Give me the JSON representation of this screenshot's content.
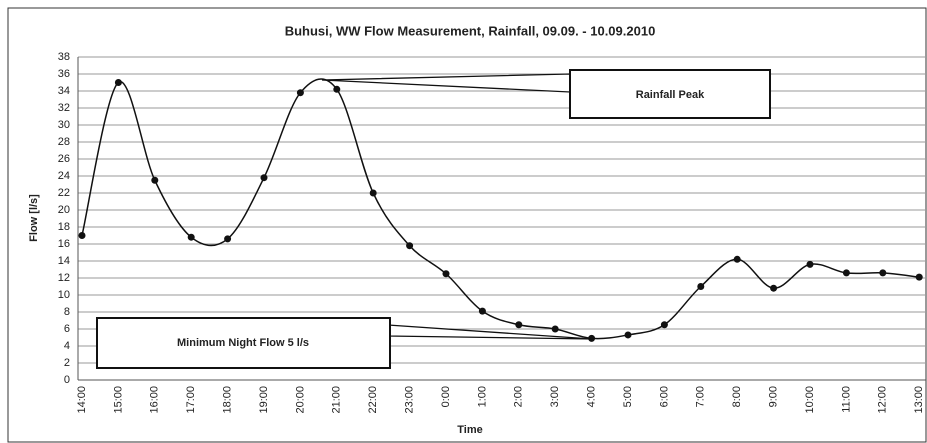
{
  "chart_data": {
    "type": "line",
    "title": "Buhusi, WW Flow Measurement, Rainfall, 09.09. - 10.09.2010",
    "x_label": "Time",
    "y_label": "Flow [l/s]",
    "categories": [
      "14:00",
      "15:00",
      "16:00",
      "17:00",
      "18:00",
      "19:00",
      "20:00",
      "21:00",
      "22:00",
      "23:00",
      "0:00",
      "1:00",
      "2:00",
      "3:00",
      "4:00",
      "5:00",
      "6:00",
      "7:00",
      "8:00",
      "9:00",
      "10:00",
      "11:00",
      "12:00",
      "13:00"
    ],
    "series": [
      {
        "name": "Flow",
        "color": "#111111",
        "values": [
          17,
          35,
          23.5,
          16.8,
          16.6,
          23.8,
          33.8,
          34.2,
          22,
          15.8,
          12.5,
          8.1,
          6.5,
          6.0,
          4.9,
          5.3,
          6.5,
          11,
          14.2,
          10.8,
          13.6,
          12.6,
          12.6,
          12.1
        ]
      }
    ],
    "ylim": [
      0,
      38
    ],
    "yticks": [
      0,
      2,
      4,
      6,
      8,
      10,
      12,
      14,
      16,
      18,
      20,
      22,
      24,
      26,
      28,
      30,
      32,
      34,
      36,
      38
    ],
    "grid": true,
    "annotations": [
      {
        "text": "Rainfall Peak"
      },
      {
        "text": "Minimum Night Flow 5 l/s"
      }
    ]
  }
}
